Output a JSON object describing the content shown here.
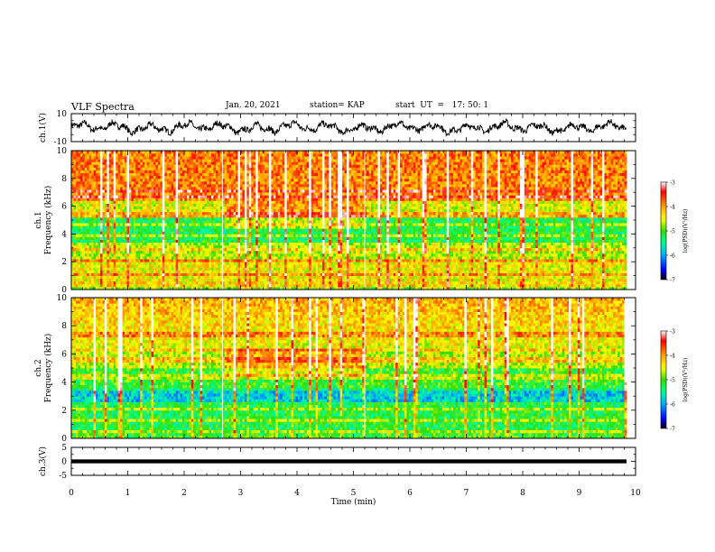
{
  "header": {
    "title": "VLF Spectra",
    "date": "Jan. 20, 2021",
    "station": "station= KAP",
    "start_ut": "start  UT  =   17: 50: 1"
  },
  "chart_data": [
    {
      "type": "line",
      "panel": "ch1-waveform",
      "ylabel": "ch.1(V)",
      "xlim": [
        0,
        10
      ],
      "ylim": [
        -10,
        10
      ],
      "ytick_labels": [
        "-10",
        "10"
      ],
      "data_extent_min": 9.83,
      "typical_range": [
        -7,
        6
      ]
    },
    {
      "type": "heatmap",
      "panel": "ch1-spectrogram",
      "ylabel": "ch.1\nFrequency (kHz)",
      "xlim": [
        0,
        10
      ],
      "ylim": [
        0,
        10
      ],
      "ytick_labels": [
        "0",
        "2",
        "4",
        "6",
        "8",
        "10"
      ],
      "segment_boundaries_min": [
        2.68,
        5.2
      ],
      "colorbar": {
        "label": "log(PSD)(V²/Hz)",
        "range": [
          -7,
          -3
        ],
        "tick_labels": [
          "-3",
          "-4",
          "-5",
          "-6",
          "-7"
        ],
        "colors": [
          "#000000",
          "#0000ff",
          "#00aaff",
          "#00ff99",
          "#33dd00",
          "#ffff00",
          "#ff9900",
          "#ff0000",
          "#ffffff"
        ]
      }
    },
    {
      "type": "heatmap",
      "panel": "ch2-spectrogram",
      "ylabel": "ch.2\nFrequency (kHz)",
      "xlim": [
        0,
        10
      ],
      "ylim": [
        0,
        10
      ],
      "ytick_labels": [
        "0",
        "2",
        "4",
        "6",
        "8",
        "10"
      ],
      "segment_boundaries_min": [
        2.68,
        5.2
      ],
      "colorbar": {
        "label": "log(PSD)(V²/Hz)",
        "range": [
          -7,
          -3
        ],
        "tick_labels": [
          "-3",
          "-4",
          "-5",
          "-6",
          "-7"
        ],
        "colors": [
          "#000000",
          "#0000ff",
          "#00aaff",
          "#00ff99",
          "#33dd00",
          "#ffff00",
          "#ff9900",
          "#ff0000",
          "#ffffff"
        ]
      }
    },
    {
      "type": "line",
      "panel": "ch3-waveform",
      "ylabel": "ch.3(V)",
      "xlim": [
        0,
        10
      ],
      "ylim": [
        -5,
        5
      ],
      "ytick_labels": [
        "5",
        "0",
        "-5"
      ],
      "band_range": [
        -0.7,
        0.7
      ]
    }
  ],
  "x_axis": {
    "label": "Time  (min)",
    "tick_labels": [
      "0",
      "1",
      "2",
      "3",
      "4",
      "5",
      "6",
      "7",
      "8",
      "9",
      "10"
    ]
  }
}
